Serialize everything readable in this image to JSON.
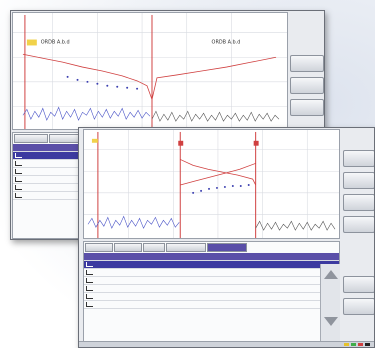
{
  "screen_back": {
    "cursor_a_label": "ORDB A.b.d",
    "cursor_b_label": "ORDB A.b.d",
    "side_buttons": [
      "",
      "",
      ""
    ],
    "table_tabs": [
      "",
      ""
    ],
    "rows": 6
  },
  "screen_front": {
    "table_tabs": [
      "",
      "",
      "",
      "",
      ""
    ],
    "rows": 6,
    "side_buttons": [
      "",
      "",
      "",
      "",
      "",
      ""
    ]
  },
  "colors": {
    "accent": "#5a4fa8",
    "trace_red": "#d04040",
    "trace_blue": "#3b3fb0",
    "noise_blue": "#4c56c8"
  }
}
